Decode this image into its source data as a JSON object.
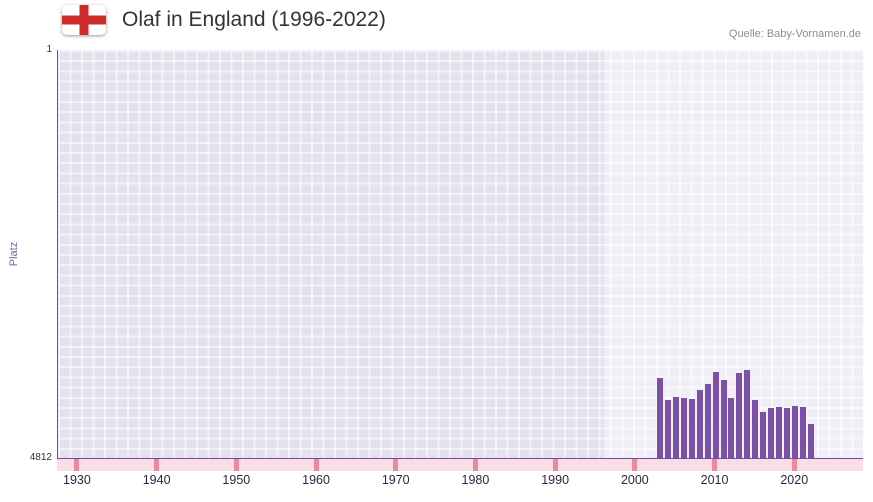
{
  "header": {
    "title": "Olaf in England (1996-2022)",
    "source": "Quelle: Baby-Vornamen.de",
    "flag_icon": "england-flag-icon",
    "flag_cross_color": "#cf2b2b",
    "flag_field_color": "#ffffff"
  },
  "chart_data": {
    "type": "bar",
    "title": "Olaf in England (1996-2022)",
    "xlabel": "",
    "ylabel": "Platz",
    "y_axis": {
      "min": 1,
      "max": 4812,
      "inverted": true,
      "tick_labels": [
        "1",
        "4812"
      ]
    },
    "x_axis": {
      "range": [
        1927.5,
        2028.5
      ],
      "tick_years": [
        1930,
        1940,
        1950,
        1960,
        1970,
        1980,
        1990,
        2000,
        2010,
        2020
      ]
    },
    "highlight_band": {
      "from": 1996,
      "to": 2028.5
    },
    "grid": true,
    "legend": false,
    "series": [
      {
        "name": "Platz",
        "color": "#7b51a8",
        "points": [
          {
            "year": 2003,
            "rank": 3870
          },
          {
            "year": 2004,
            "rank": 4130
          },
          {
            "year": 2005,
            "rank": 4090
          },
          {
            "year": 2006,
            "rank": 4100
          },
          {
            "year": 2007,
            "rank": 4115
          },
          {
            "year": 2008,
            "rank": 4010
          },
          {
            "year": 2009,
            "rank": 3940
          },
          {
            "year": 2010,
            "rank": 3800
          },
          {
            "year": 2011,
            "rank": 3890
          },
          {
            "year": 2012,
            "rank": 4100
          },
          {
            "year": 2013,
            "rank": 3810
          },
          {
            "year": 2014,
            "rank": 3775
          },
          {
            "year": 2015,
            "rank": 4130
          },
          {
            "year": 2016,
            "rank": 4270
          },
          {
            "year": 2017,
            "rank": 4220
          },
          {
            "year": 2018,
            "rank": 4210
          },
          {
            "year": 2019,
            "rank": 4220
          },
          {
            "year": 2020,
            "rank": 4200
          },
          {
            "year": 2021,
            "rank": 4210
          },
          {
            "year": 2022,
            "rank": 4410
          }
        ]
      }
    ],
    "colors": {
      "plot_background": "#e4e0ee",
      "band_overlay": "rgba(255,255,255,0.42)",
      "grid_line": "rgba(255,255,255,0.55)",
      "axis": "#6f4ba0",
      "bar": "#7b51a8",
      "x_strip": "#f8dfe7",
      "x_strip_tick": "#ea8aa2",
      "x_label": "#2e2446",
      "y_tick_label": "#333333",
      "ylabel_text": "#7b5fae",
      "title": "#333333",
      "source": "#8d8d8d"
    }
  }
}
